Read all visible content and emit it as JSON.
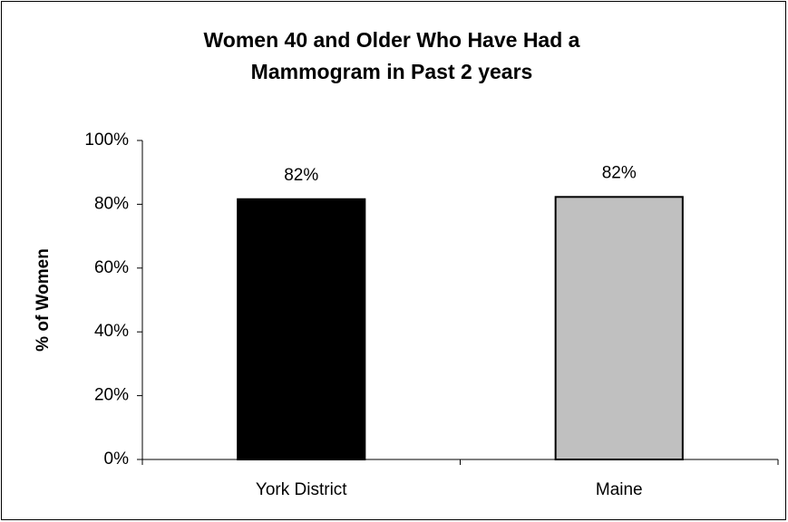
{
  "chart_data": {
    "type": "bar",
    "title": [
      "Women 40 and Older Who Have Had a",
      "Mammogram in Past 2 years"
    ],
    "y_label": "% of Women",
    "categories": [
      "York District",
      "Maine"
    ],
    "values": [
      81.6,
      82.3
    ],
    "value_labels": [
      "82%",
      "82%"
    ],
    "colors": [
      "#000000",
      "#c0c0c0"
    ],
    "ylim": [
      0,
      100
    ],
    "yticks": [
      {
        "value": 0,
        "label": "0%"
      },
      {
        "value": 20,
        "label": "20%"
      },
      {
        "value": 40,
        "label": "40%"
      },
      {
        "value": 60,
        "label": "60%"
      },
      {
        "value": 80,
        "label": "80%"
      },
      {
        "value": 100,
        "label": "100%"
      }
    ],
    "grid": false
  }
}
